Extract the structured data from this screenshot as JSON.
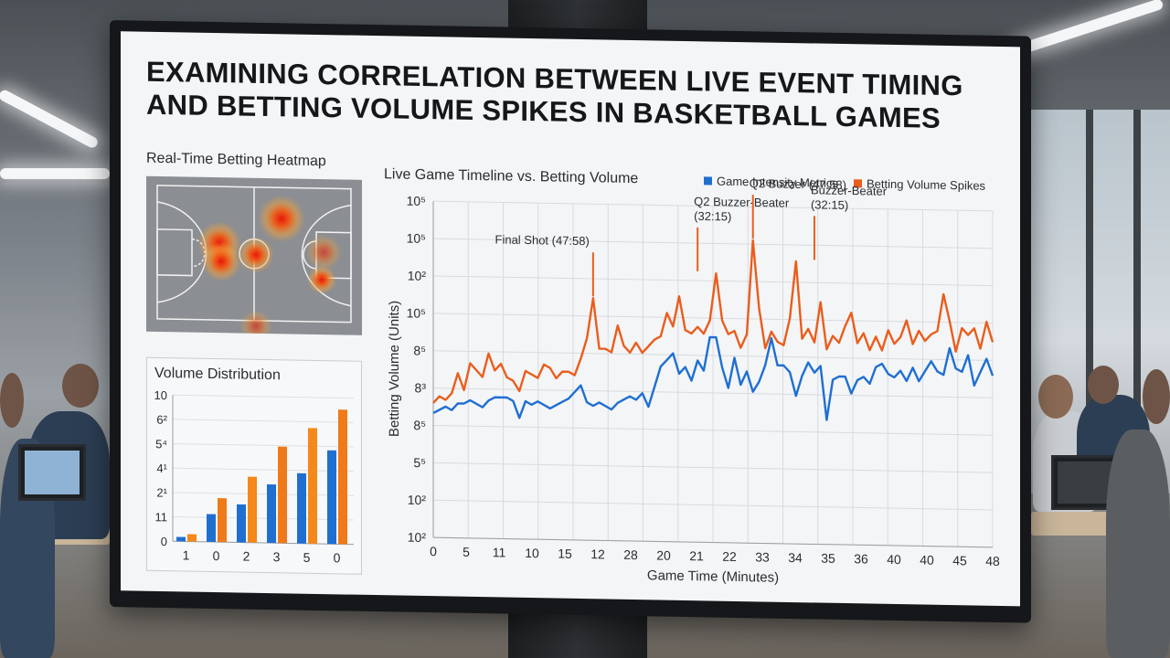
{
  "title_line1": "EXAMINING CORRELATION BETWEEN LIVE EVENT TIMING",
  "title_line2": "AND BETTING VOLUME SPIKES IN BASKETBALL GAMES",
  "heatmap": {
    "label": "Real-Time Betting Heatmap"
  },
  "volume_distribution": {
    "label": "Volume Distribution"
  },
  "timeline": {
    "label": "Live Game Timeline vs. Betting Volume"
  },
  "colors": {
    "blue": "#1f6fd1",
    "orange": "#ea5d1c",
    "orange_light": "#f79a1e"
  },
  "chart_data": [
    {
      "type": "line",
      "title": "Live Game Timeline vs. Betting Volume",
      "xlabel": "Game Time (Minutes)",
      "ylabel": "Betting Volume (Units)",
      "x_tick_labels": [
        "0",
        "5",
        "11",
        "10",
        "15",
        "12",
        "28",
        "20",
        "21",
        "22",
        "33",
        "34",
        "35",
        "36",
        "40",
        "40",
        "45",
        "48"
      ],
      "y_tick_labels": [
        "10⁵",
        "10⁵",
        "10²",
        "10⁵",
        "8⁵",
        "8³",
        "8⁵",
        "5⁵",
        "10²",
        "10²"
      ],
      "legend": {
        "position": "top-right",
        "entries": [
          "Game Intensity Metrics",
          "Betting Volume Spikes"
        ]
      },
      "grid": true,
      "y_range": [
        0,
        100
      ],
      "series": [
        {
          "name": "Game Intensity Metrics",
          "color": "#1f6fd1",
          "values": [
            37,
            38,
            39,
            38,
            40,
            40,
            41,
            40,
            39,
            41,
            42,
            42,
            42,
            41,
            36,
            41,
            40,
            41,
            40,
            39,
            40,
            41,
            42,
            44,
            46,
            41,
            40,
            41,
            40,
            39,
            41,
            42,
            43,
            42,
            44,
            40,
            46,
            52,
            54,
            56,
            50,
            52,
            48,
            54,
            51,
            61,
            61,
            52,
            46,
            55,
            47,
            51,
            45,
            48,
            53,
            61,
            53,
            53,
            51,
            44,
            50,
            54,
            51,
            53,
            37,
            49,
            50,
            50,
            45,
            49,
            50,
            48,
            53,
            54,
            51,
            50,
            52,
            49,
            53,
            49,
            52,
            55,
            52,
            51,
            59,
            53,
            52,
            57,
            48,
            52,
            56,
            51
          ],
          "x": [
            0,
            0.5,
            1,
            1.5,
            2,
            2.5,
            3,
            3.5,
            4,
            4.5,
            5,
            5.5,
            6,
            6.5,
            7,
            7.5,
            8,
            8.5,
            9,
            9.5,
            10,
            10.5,
            11,
            11.5,
            12,
            12.5,
            13,
            13.5,
            14,
            14.5,
            15,
            15.5,
            16,
            16.5,
            17,
            17.5,
            18,
            18.5,
            19,
            19.5,
            20,
            20.5,
            21,
            21.5,
            22,
            22.5,
            23,
            23.5,
            24,
            24.5,
            25,
            25.5,
            26,
            26.5,
            27,
            27.5,
            28,
            28.5,
            29,
            29.5,
            30,
            30.5,
            31,
            31.5,
            32,
            32.5,
            33,
            33.5,
            34,
            34.5,
            35,
            35.5,
            36,
            36.5,
            37,
            37.5,
            38,
            38.5,
            39,
            39.5,
            40,
            40.5,
            41,
            41.5,
            42,
            42.5,
            43,
            43.5,
            44,
            44.5,
            45,
            45.5
          ]
        },
        {
          "name": "Betting Volume Spikes",
          "color": "#ea5d1c",
          "values": [
            40,
            42,
            41,
            43,
            49,
            44,
            52,
            50,
            48,
            55,
            50,
            52,
            48,
            47,
            44,
            50,
            49,
            48,
            52,
            51,
            48,
            50,
            50,
            49,
            54,
            60,
            72,
            57,
            57,
            56,
            64,
            58,
            56,
            59,
            56,
            58,
            60,
            61,
            68,
            64,
            73,
            63,
            62,
            64,
            62,
            66,
            80,
            66,
            62,
            63,
            58,
            62,
            90,
            70,
            58,
            63,
            60,
            59,
            67,
            84,
            61,
            64,
            60,
            72,
            58,
            62,
            60,
            65,
            69,
            60,
            63,
            58,
            62,
            58,
            64,
            60,
            62,
            67,
            60,
            64,
            61,
            63,
            64,
            75,
            67,
            58,
            65,
            63,
            65,
            59,
            67,
            61
          ],
          "x": [
            0,
            0.5,
            1,
            1.5,
            2,
            2.5,
            3,
            3.5,
            4,
            4.5,
            5,
            5.5,
            6,
            6.5,
            7,
            7.5,
            8,
            8.5,
            9,
            9.5,
            10,
            10.5,
            11,
            11.5,
            12,
            12.5,
            13,
            13.5,
            14,
            14.5,
            15,
            15.5,
            16,
            16.5,
            17,
            17.5,
            18,
            18.5,
            19,
            19.5,
            20,
            20.5,
            21,
            21.5,
            22,
            22.5,
            23,
            23.5,
            24,
            24.5,
            25,
            25.5,
            26,
            26.5,
            27,
            27.5,
            28,
            28.5,
            29,
            29.5,
            30,
            30.5,
            31,
            31.5,
            32,
            32.5,
            33,
            33.5,
            34,
            34.5,
            35,
            35.5,
            36,
            36.5,
            37,
            37.5,
            38,
            38.5,
            39,
            39.5,
            40,
            40.5,
            41,
            41.5,
            42,
            42.5,
            43,
            43.5,
            44,
            44.5,
            45,
            45.5
          ]
        }
      ],
      "annotations": [
        {
          "text": "Final Shot (47:58)",
          "x": 13,
          "y": 72
        },
        {
          "text": "Q2 Buzzer-Beater",
          "text2": "(32:15)",
          "x": 21.5,
          "y": 80
        },
        {
          "text": "Q2 Buzzer (47:58)",
          "x": 26,
          "y": 90
        },
        {
          "text": "Buzzer-Beater",
          "text2": "(32:15)",
          "x": 31,
          "y": 84
        }
      ]
    },
    {
      "type": "bar",
      "title": "Volume Distribution",
      "categories": [
        "1",
        "0",
        "2",
        "3",
        "5",
        "0"
      ],
      "y_tick_labels": [
        "10",
        "6²",
        "5⁴",
        "4¹",
        "2¹",
        "11",
        "0"
      ],
      "y_range": [
        0,
        10
      ],
      "series": [
        {
          "name": "",
          "color": "#1f6fd1",
          "values": [
            0.3,
            1.9,
            2.6,
            4.0,
            4.8,
            6.4
          ]
        },
        {
          "name": "",
          "color": "#f07a1a",
          "values": [
            0.5,
            3.0,
            4.5,
            6.6,
            7.9,
            9.2
          ]
        }
      ]
    }
  ]
}
